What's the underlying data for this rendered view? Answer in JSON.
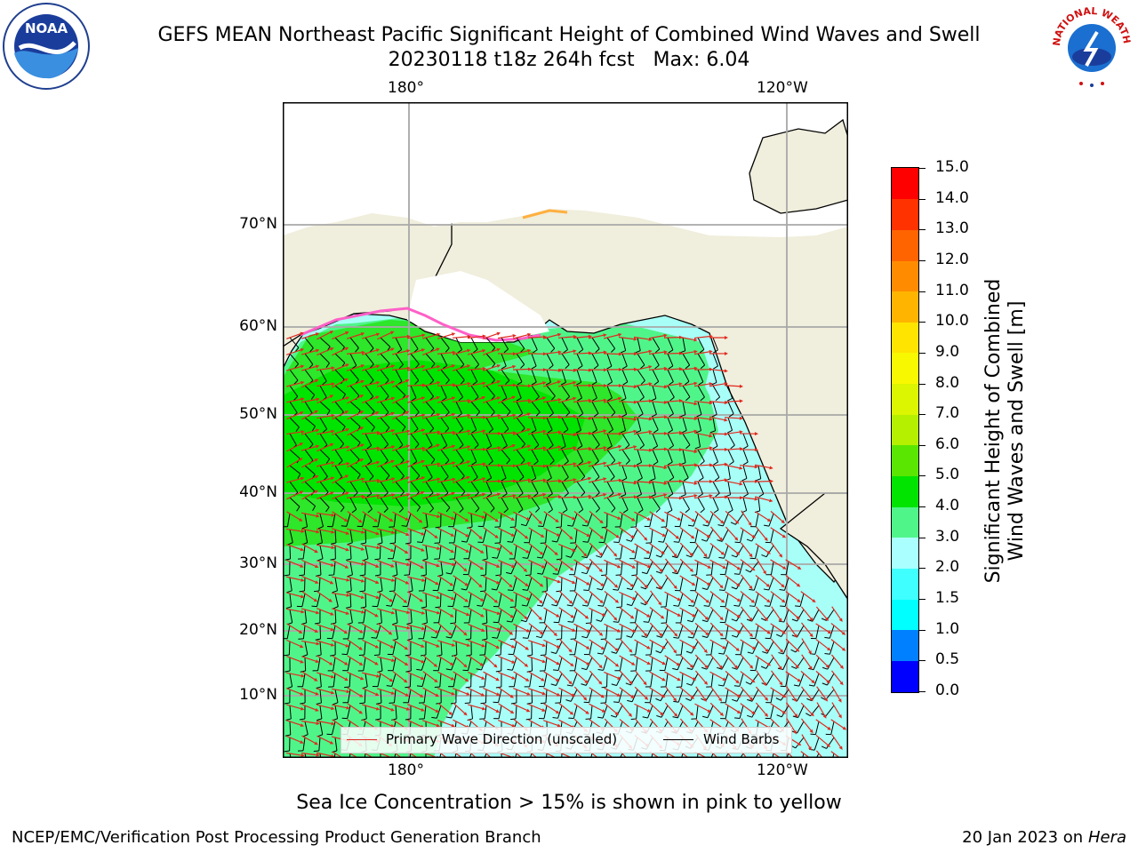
{
  "title": {
    "line1": "GEFS MEAN Northeast Pacific Significant Height of Combined Wind Waves and Swell",
    "line2": "20230118 t18z 264h fcst   Max: 6.04"
  },
  "logos": {
    "left": {
      "icon": "noaa-logo-icon",
      "text": "NOAA"
    },
    "right": {
      "icon": "nws-logo-icon",
      "text": "NATIONAL WEATHER SERVICE"
    }
  },
  "map": {
    "lon_labels_top": [
      "180°",
      "120°W"
    ],
    "lon_labels_bottom": [
      "180°",
      "120°W"
    ],
    "lat_labels": [
      "70°N",
      "60°N",
      "50°N",
      "40°N",
      "30°N",
      "20°N",
      "10°N"
    ],
    "land_color": "#f0eedc",
    "ocean_low_color": "#a8fff8",
    "wave_band_colors": [
      "#aaffff",
      "#50f58a",
      "#2ee62a",
      "#00e400"
    ]
  },
  "legend": {
    "wave_dir_label": "Primary Wave Direction (unscaled)",
    "wave_dir_color": "#e0281e",
    "wind_barbs_label": "Wind Barbs",
    "wind_barbs_color": "#000000"
  },
  "colorbar": {
    "label_line1": "Significant Height of Combined",
    "label_line2": "Wind Waves and Swell [m]",
    "ticks": [
      "15.0",
      "14.0",
      "13.0",
      "12.0",
      "11.0",
      "10.0",
      "9.0",
      "8.0",
      "7.0",
      "6.0",
      "5.0",
      "4.0",
      "3.0",
      "2.0",
      "1.5",
      "1.0",
      "0.5",
      "0.0"
    ],
    "colors_bottom_to_top": [
      "#0000ff",
      "#0080ff",
      "#00ffff",
      "#40ffff",
      "#aaffff",
      "#50f58a",
      "#00e400",
      "#5ae600",
      "#b4f000",
      "#dcf500",
      "#f8f800",
      "#ffe400",
      "#ffb400",
      "#ff8c00",
      "#ff6400",
      "#ff3200",
      "#ff0000"
    ]
  },
  "caption": "Sea Ice Concentration > 15% is shown in pink to yellow",
  "footer": {
    "left": "NCEP/EMC/Verification Post Processing Product Generation Branch",
    "right_date": "20 Jan 2023 on ",
    "right_host": "Hera"
  }
}
